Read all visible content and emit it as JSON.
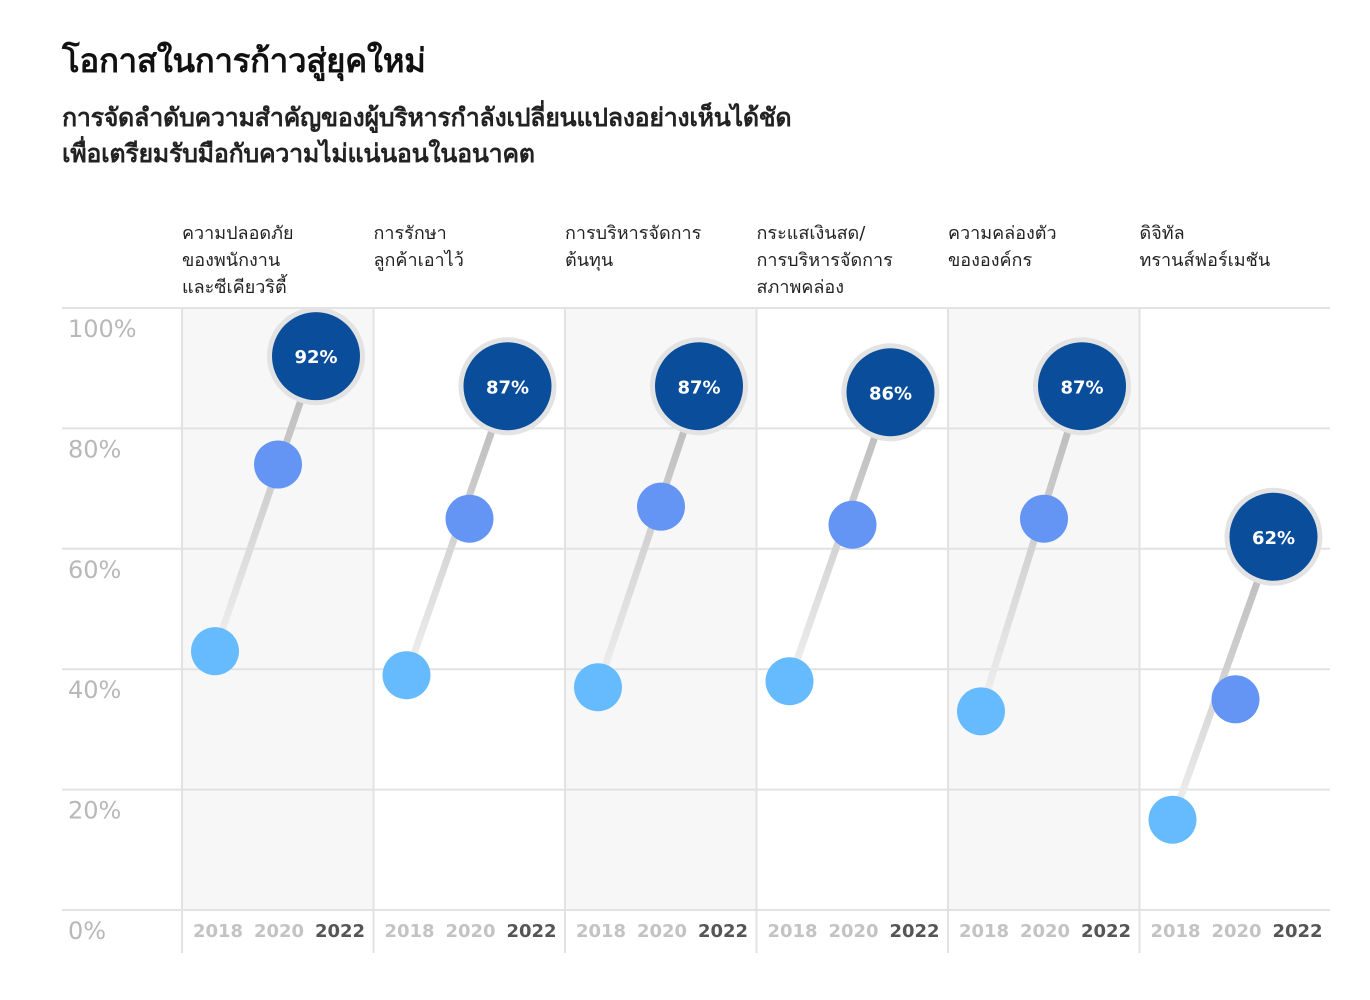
{
  "chart_data": {
    "type": "scatter",
    "title": "โอกาสในการก้าวสู่ยุคใหม่",
    "subtitle": [
      "การจัดลำดับความสำคัญของผู้บริหารกำลังเปลี่ยนแปลงอย่างเห็นได้ชัด",
      "เพื่อเตรียมรับมือกับความไม่แน่นอนในอนาคต"
    ],
    "x": [
      "2018",
      "2020",
      "2022"
    ],
    "ylim": [
      0,
      100
    ],
    "y_ticks": [
      "0%",
      "20%",
      "40%",
      "60%",
      "80%",
      "100%"
    ],
    "categories": [
      {
        "name": [
          "ความปลอดภัย",
          "ของพนักงาน",
          "และซีเคียวริตี้"
        ],
        "values": [
          43,
          74,
          92
        ],
        "label": "92%"
      },
      {
        "name": [
          "การรักษา",
          "ลูกค้าเอาไว้"
        ],
        "values": [
          39,
          65,
          87
        ],
        "label": "87%"
      },
      {
        "name": [
          "การบริหารจัดการ",
          "ต้นทุน"
        ],
        "values": [
          37,
          67,
          87
        ],
        "label": "87%"
      },
      {
        "name": [
          "กระแสเงินสด/",
          "การบริหารจัดการ",
          "สภาพคล่อง"
        ],
        "values": [
          38,
          64,
          86
        ],
        "label": "86%"
      },
      {
        "name": [
          "ความคล่องตัว",
          "ขององค์กร"
        ],
        "values": [
          33,
          65,
          87
        ],
        "label": "87%"
      },
      {
        "name": [
          "ดิจิทัล",
          "ทรานส์ฟอร์เมชัน"
        ],
        "values": [
          15,
          35,
          62
        ],
        "label": "62%"
      }
    ],
    "colors": {
      "y2018": "#66bbff",
      "y2020": "#6495f5",
      "y2022": "#0a4e9b",
      "halo": "#e3e3e3",
      "shade": "#f7f7f7",
      "grid": "#e2e2e2"
    },
    "grid": true
  }
}
